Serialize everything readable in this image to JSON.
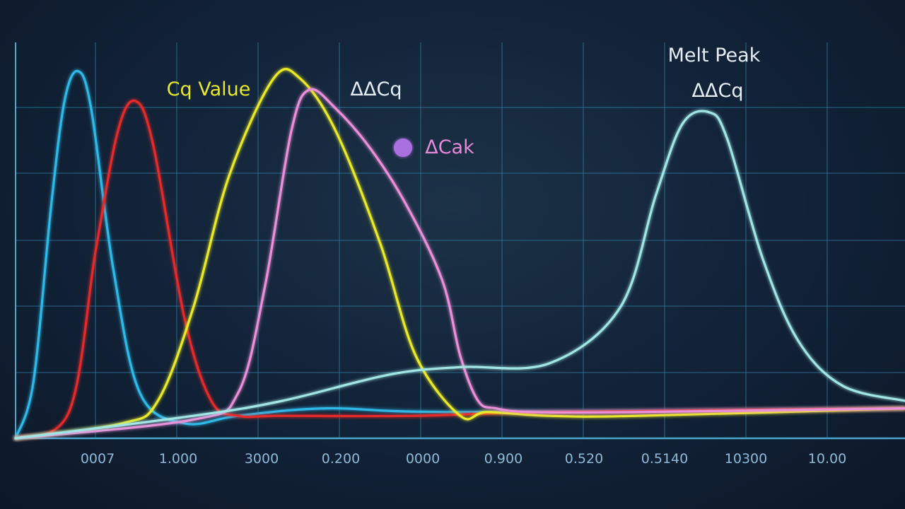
{
  "chart_data": {
    "type": "line",
    "title": "",
    "xlabel": "",
    "ylabel": "",
    "grid": true,
    "x_tick_labels": [
      "0007",
      "1.000",
      "3000",
      "0.200",
      "0000",
      "0.900",
      "0.520",
      "0.5140",
      "10300",
      "10.00"
    ],
    "annotations": [
      {
        "text": "Cq Value",
        "color": "#e8e82a"
      },
      {
        "text": "ΔΔCq",
        "color": "#e6eef5"
      },
      {
        "text": "ΔCak",
        "color": "#e78ad6",
        "marker_color": "#a970e0"
      },
      {
        "text": "Melt Peak",
        "color": "#e6eef5"
      },
      {
        "text": "ΔΔCq",
        "color": "#e6eef5"
      }
    ],
    "series": [
      {
        "color": "#2fb9e8",
        "x": [
          0,
          0.02,
          0.04,
          0.055,
          0.07,
          0.085,
          0.11,
          0.14,
          0.19,
          0.25,
          0.35,
          0.5,
          1.0
        ],
        "y": [
          0,
          0.15,
          0.62,
          0.9,
          0.98,
          0.88,
          0.45,
          0.12,
          0.04,
          0.06,
          0.08,
          0.07,
          0.08
        ]
      },
      {
        "color": "#e52a2a",
        "x": [
          0,
          0.06,
          0.09,
          0.115,
          0.135,
          0.155,
          0.19,
          0.22,
          0.25,
          0.3,
          0.45,
          0.6,
          1.0
        ],
        "y": [
          0,
          0.07,
          0.5,
          0.82,
          0.9,
          0.78,
          0.32,
          0.1,
          0.06,
          0.06,
          0.06,
          0.07,
          0.08
        ]
      },
      {
        "color": "#eaea28",
        "x": [
          0,
          0.12,
          0.16,
          0.2,
          0.24,
          0.29,
          0.32,
          0.36,
          0.41,
          0.45,
          0.5,
          0.53,
          0.6,
          0.7,
          1.0
        ],
        "y": [
          0,
          0.04,
          0.1,
          0.35,
          0.7,
          0.96,
          0.96,
          0.82,
          0.52,
          0.22,
          0.06,
          0.07,
          0.06,
          0.06,
          0.08
        ]
      },
      {
        "color": "#ea8fd8",
        "x": [
          0,
          0.2,
          0.25,
          0.28,
          0.31,
          0.33,
          0.36,
          0.4,
          0.44,
          0.48,
          0.5,
          0.52,
          0.54,
          0.58,
          0.7,
          1.0
        ],
        "y": [
          0,
          0.05,
          0.12,
          0.4,
          0.82,
          0.93,
          0.88,
          0.77,
          0.62,
          0.42,
          0.22,
          0.1,
          0.08,
          0.07,
          0.07,
          0.08
        ]
      },
      {
        "color": "#9fe6e4",
        "x": [
          0,
          0.2,
          0.3,
          0.42,
          0.5,
          0.6,
          0.68,
          0.72,
          0.75,
          0.78,
          0.8,
          0.84,
          0.88,
          0.93,
          1.0
        ],
        "y": [
          0,
          0.06,
          0.1,
          0.17,
          0.19,
          0.2,
          0.35,
          0.65,
          0.84,
          0.87,
          0.8,
          0.48,
          0.26,
          0.14,
          0.1
        ]
      }
    ]
  }
}
